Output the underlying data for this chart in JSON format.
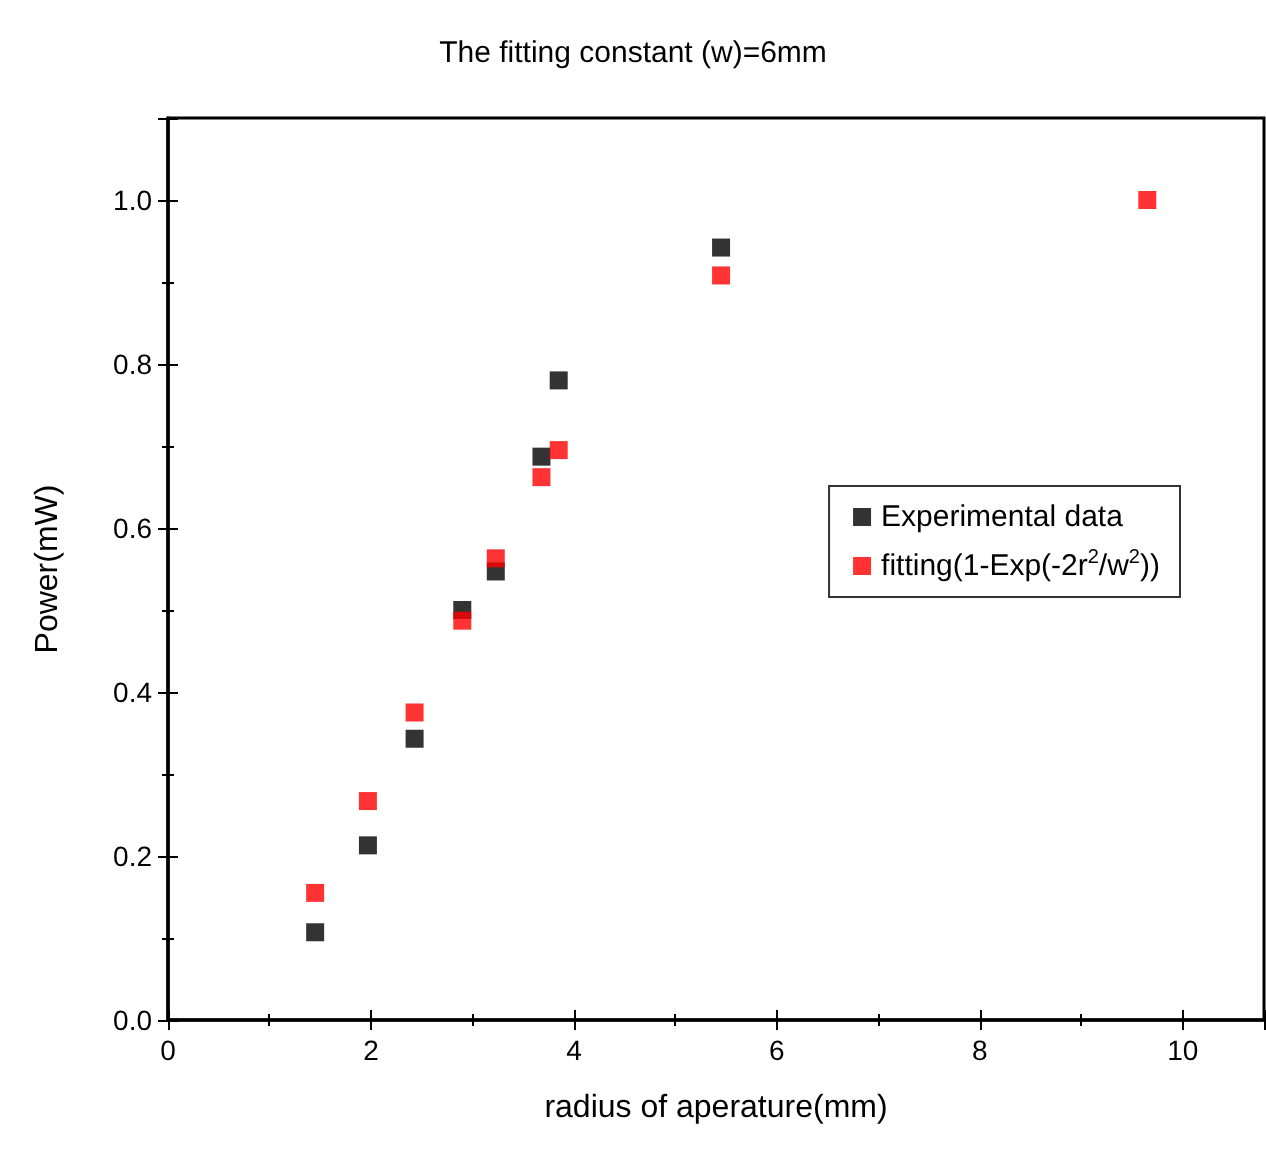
{
  "chart_data": {
    "type": "scatter",
    "title": "The fitting constant (w)=6mm",
    "xlabel": "radius of aperature(mm)",
    "ylabel": "Power(mW)",
    "series": [
      {
        "name": "Experimental data",
        "color": "#000000",
        "x": [
          1.45,
          1.97,
          2.43,
          2.9,
          3.23,
          3.68,
          3.85,
          5.45
        ],
        "values": [
          0.107,
          0.213,
          0.343,
          0.5,
          0.547,
          0.687,
          0.78,
          0.942
        ]
      },
      {
        "name": "fitting(1-Exp(-2r$^{2}$/w$^{2}$))",
        "color": "#ff0000",
        "x": [
          1.45,
          1.97,
          2.43,
          2.9,
          3.23,
          3.68,
          3.85,
          5.45,
          9.65
        ],
        "values": [
          0.155,
          0.267,
          0.375,
          0.487,
          0.563,
          0.662,
          0.695,
          0.908,
          1.0
        ]
      }
    ],
    "xlim": [
      0,
      10.8
    ],
    "xticks": [
      0,
      2,
      4,
      6,
      8,
      10
    ],
    "ylim": [
      0,
      1.1
    ],
    "yticks": [
      {
        "value": 0,
        "label": "0.0"
      },
      {
        "value": 0.2,
        "label": "0.2"
      },
      {
        "value": 0.4,
        "label": "0.4"
      },
      {
        "value": 0.6,
        "label": "0.6"
      },
      {
        "value": 0.8,
        "label": "0.8"
      },
      {
        "value": 1,
        "label": "1.0"
      }
    ],
    "marker": "square",
    "grid": false,
    "legend": "right"
  }
}
